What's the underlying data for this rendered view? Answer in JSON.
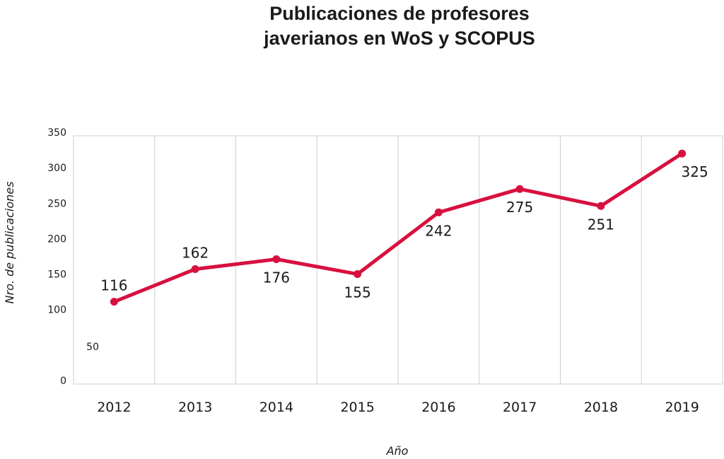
{
  "chart_data": {
    "type": "line",
    "title_lines": [
      "Publicaciones de profesores",
      "javerianos en WoS y SCOPUS"
    ],
    "xlabel": "Año",
    "ylabel": "Nro. de publicaciones",
    "categories": [
      "2012",
      "2013",
      "2014",
      "2015",
      "2016",
      "2017",
      "2018",
      "2019"
    ],
    "series": [
      {
        "values": [
          116,
          162,
          176,
          155,
          242,
          275,
          251,
          325
        ]
      }
    ],
    "data_labels": [
      "116",
      "162",
      "176",
      "155",
      "242",
      "275",
      "251",
      "325"
    ],
    "yticks": [
      0,
      50,
      100,
      150,
      200,
      250,
      300,
      350
    ],
    "ytick_labels": [
      "0",
      "50",
      "100",
      "150",
      "200",
      "250",
      "300",
      "350"
    ],
    "ylim": [
      0,
      350
    ],
    "grid": "vertical",
    "line_color": "#d8103f"
  }
}
